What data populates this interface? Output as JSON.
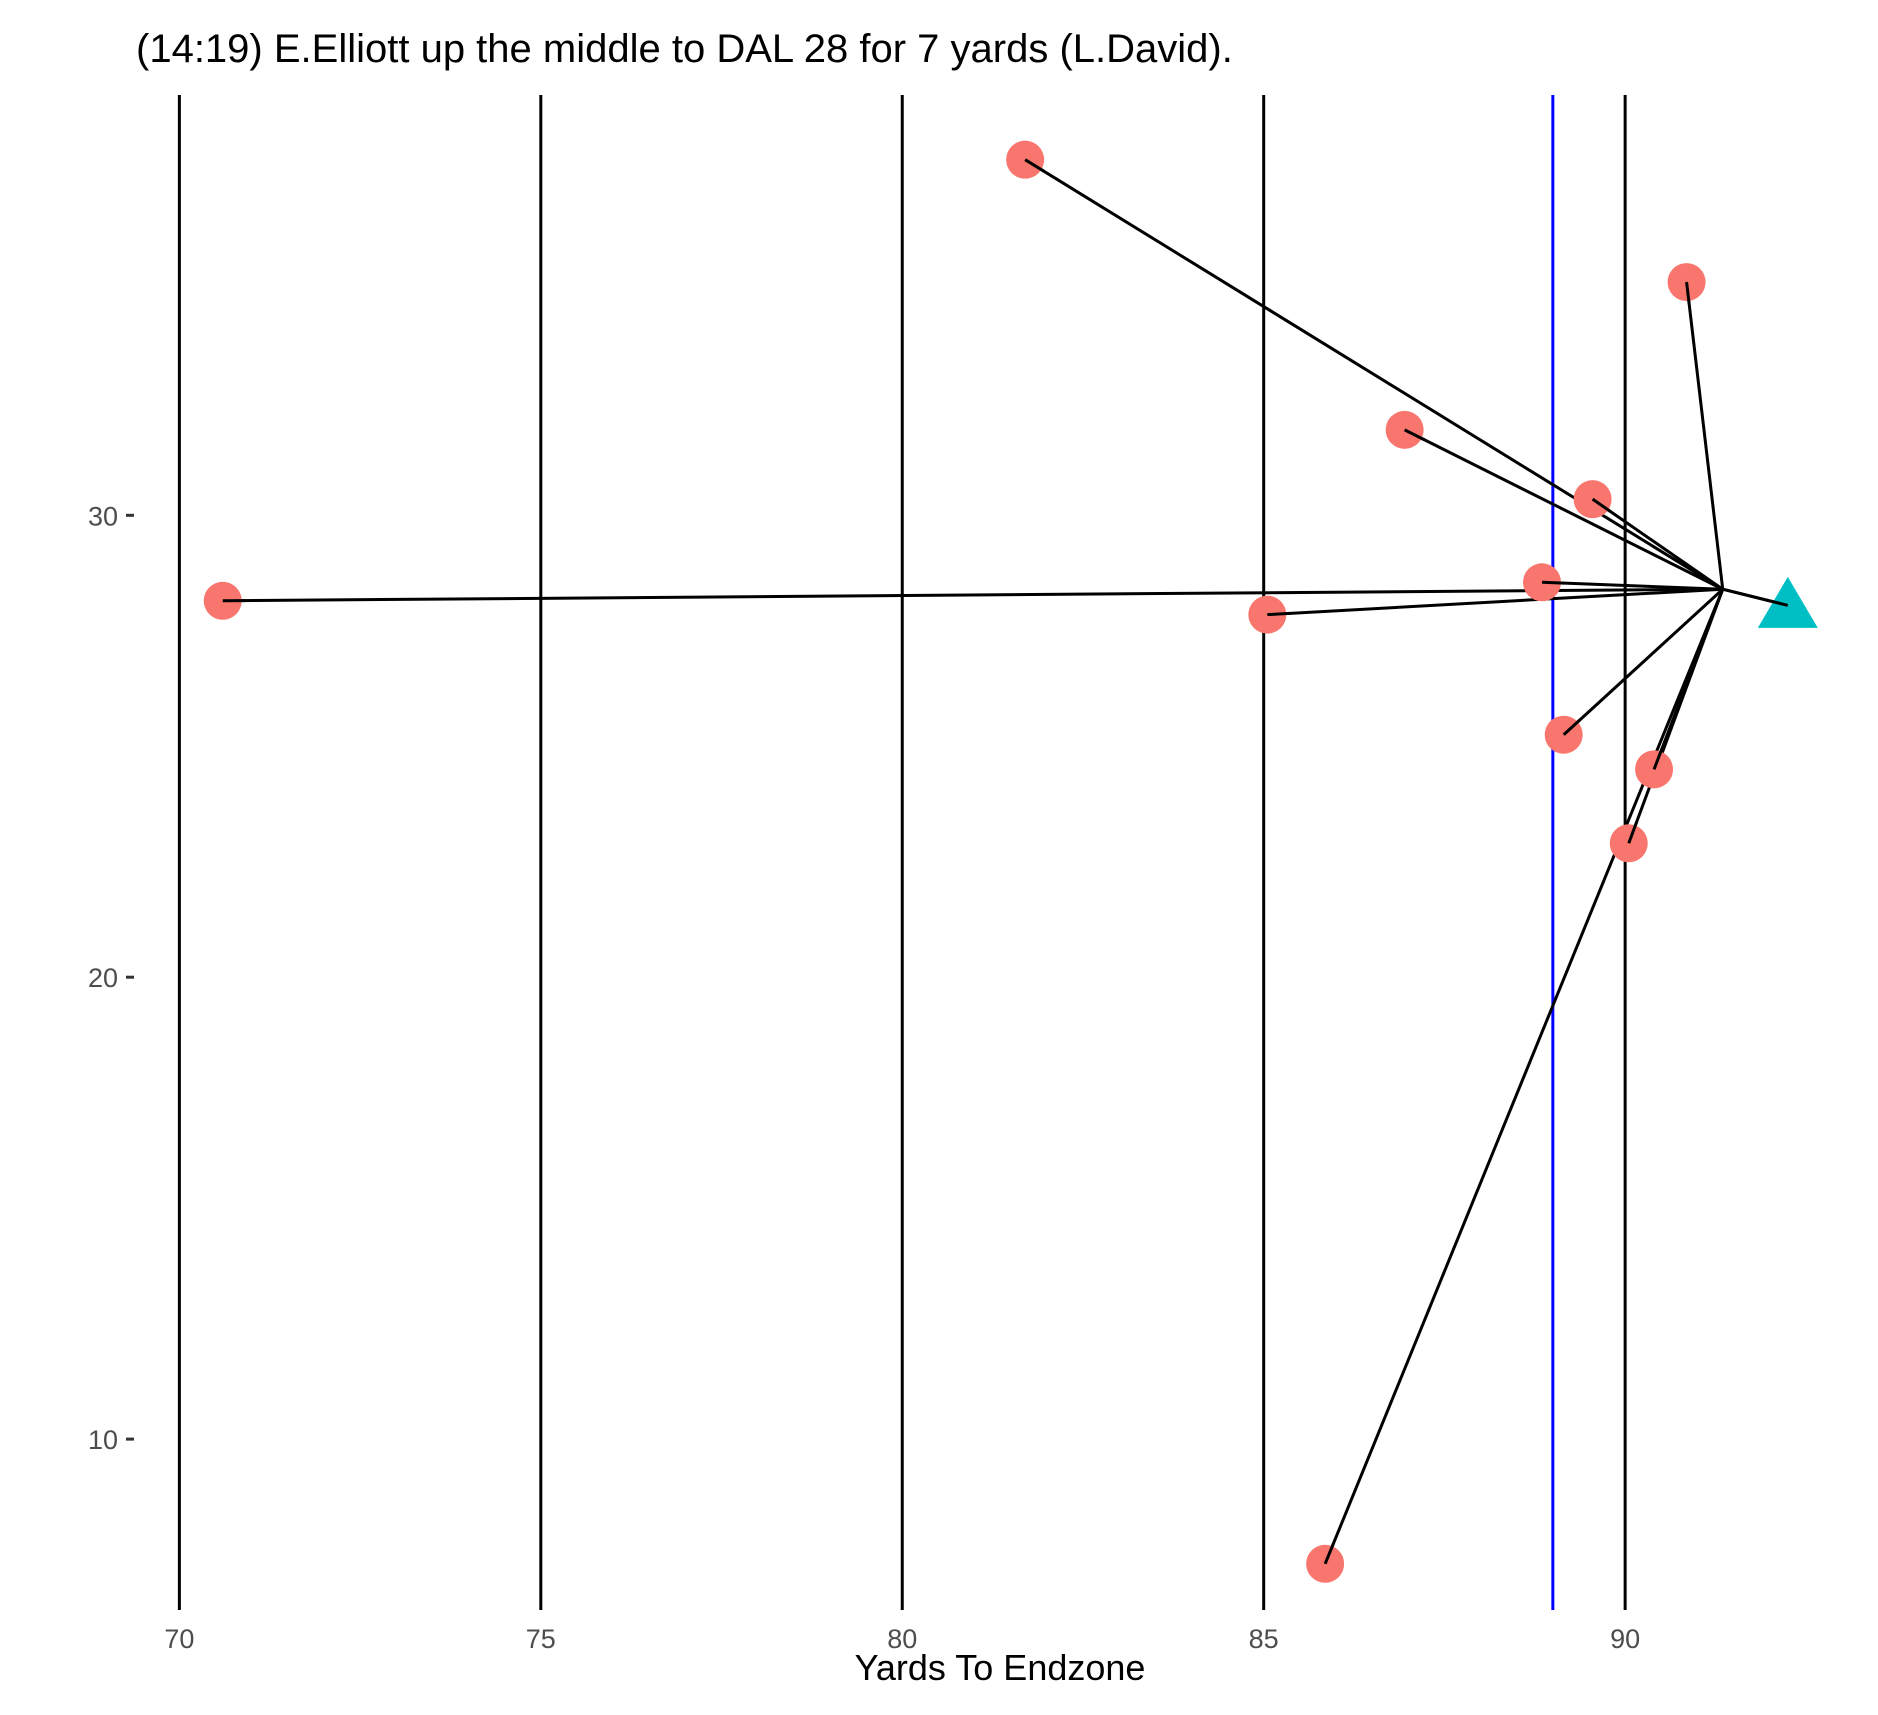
{
  "chart_data": {
    "type": "scatter",
    "title": "(14:19) E.Elliott up the middle to DAL 28 for 7 yards (L.David).",
    "xlabel": "Yards To Endzone",
    "ylabel": "",
    "xlim": [
      69.4,
      93.0
    ],
    "ylim": [
      6.3,
      39.1
    ],
    "x_ticks": [
      70,
      75,
      80,
      85,
      90
    ],
    "y_ticks": [
      10,
      20,
      30
    ],
    "grid": false,
    "yard_lines": [
      70,
      75,
      80,
      85,
      90
    ],
    "line_of_scrimmage": 89,
    "colors": {
      "defender": "#F8766D",
      "ball_carrier": "#00BFC4",
      "yard_line": "#000000",
      "line_of_scrimmage": "#0000FF",
      "connector": "#000000"
    },
    "convergence_point": {
      "x": 91.35,
      "y": 28.4
    },
    "ball_carrier": {
      "x": 92.25,
      "y": 28.05,
      "shape": "triangle"
    },
    "defenders": [
      {
        "x": 81.7,
        "y": 37.7
      },
      {
        "x": 90.85,
        "y": 35.05
      },
      {
        "x": 86.95,
        "y": 31.85
      },
      {
        "x": 89.55,
        "y": 30.35
      },
      {
        "x": 88.85,
        "y": 28.55
      },
      {
        "x": 70.6,
        "y": 28.15
      },
      {
        "x": 85.05,
        "y": 27.85
      },
      {
        "x": 89.15,
        "y": 25.25
      },
      {
        "x": 90.4,
        "y": 24.5
      },
      {
        "x": 90.05,
        "y": 22.9
      },
      {
        "x": 85.85,
        "y": 7.3
      }
    ]
  }
}
